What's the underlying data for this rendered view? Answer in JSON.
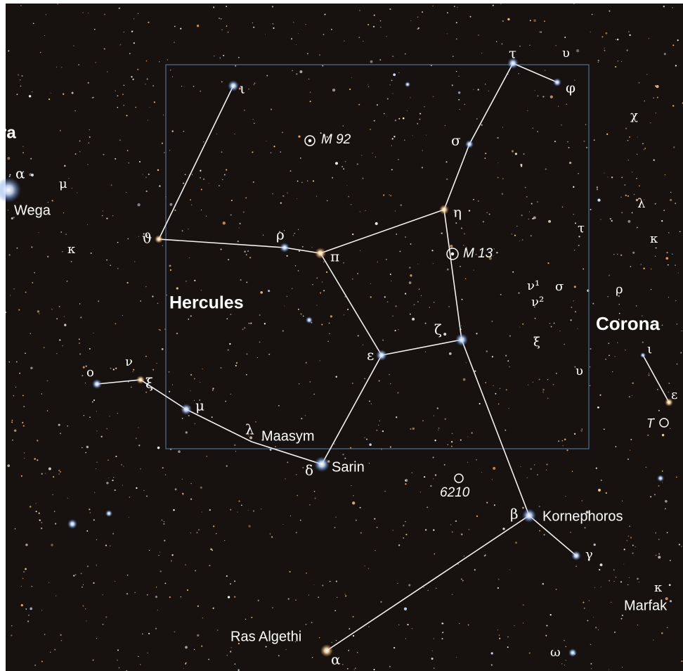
{
  "labels": [
    "ra",
    "α",
    "μ",
    "Wega",
    "κ",
    "ι",
    "M 92",
    "τ",
    "υ",
    "φ",
    "χ",
    "σ",
    "ϑ",
    "ρ",
    "η",
    "π",
    "M 13",
    "λ",
    "τ",
    "κ",
    "Hercules",
    "ν¹",
    "ν²",
    "σ",
    "ρ",
    "ζ",
    "ε",
    "ξ",
    "Corona",
    "ι",
    "ν",
    "ο",
    "ξ",
    "υ",
    "ε",
    "T",
    "μ",
    "λ",
    "Maasym",
    "δ",
    "Sarin",
    "6210",
    "β",
    "Kornephoros",
    "γ",
    "κ",
    "Marfak",
    "Ras Algethi",
    "α",
    "ω"
  ]
}
